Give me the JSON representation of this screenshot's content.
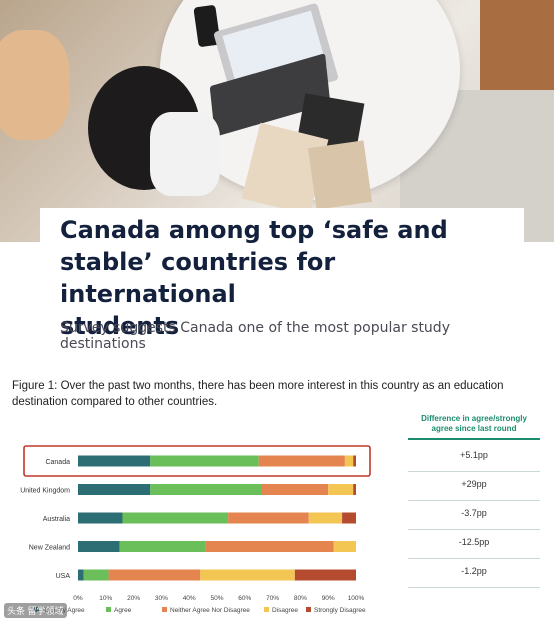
{
  "article": {
    "headline_line1": "Canada among top ‘safe and",
    "headline_line2": "stable’ countries for international",
    "headline_line3": "students",
    "subhead_line1": "Survey suggests Canada one of the most popular study",
    "subhead_line2": "destinations"
  },
  "figure": {
    "caption_line1": "Figure 1: Over the past two months, there has been more interest in this country as an education",
    "caption_line2": "destination compared to other countries."
  },
  "difference_panel": {
    "header_line1": "Difference in agree/strongly",
    "header_line2": "agree since last round",
    "values": [
      "+5.1pp",
      "+29pp",
      "-3.7pp",
      "-12.5pp",
      "-1.2pp"
    ]
  },
  "watermark": "头条 留学领域",
  "chart_data": {
    "type": "bar",
    "orientation": "horizontal",
    "stacked": true,
    "categories": [
      "Canada",
      "United Kingdom",
      "Australia",
      "New Zealand",
      "USA"
    ],
    "highlighted_category": "Canada",
    "xlim": [
      0,
      100
    ],
    "x_ticks": [
      "0%",
      "10%",
      "20%",
      "30%",
      "40%",
      "50%",
      "60%",
      "70%",
      "80%",
      "90%",
      "100%"
    ],
    "legend_position": "bottom",
    "series": [
      {
        "name": "Strongly Agree",
        "color": "#2c6e73",
        "values": [
          26,
          26,
          16,
          15,
          2
        ]
      },
      {
        "name": "Agree",
        "color": "#6abf5a",
        "values": [
          39,
          40,
          38,
          31,
          9
        ]
      },
      {
        "name": "Neither Agree Nor Disagree",
        "color": "#e4844e",
        "values": [
          31,
          24,
          29,
          46,
          33
        ]
      },
      {
        "name": "Disagree",
        "color": "#f3c553",
        "values": [
          3,
          9,
          12,
          8,
          34
        ]
      },
      {
        "name": "Strongly Disagree",
        "color": "#b44a2e",
        "values": [
          1,
          1,
          5,
          0,
          22
        ]
      }
    ]
  }
}
